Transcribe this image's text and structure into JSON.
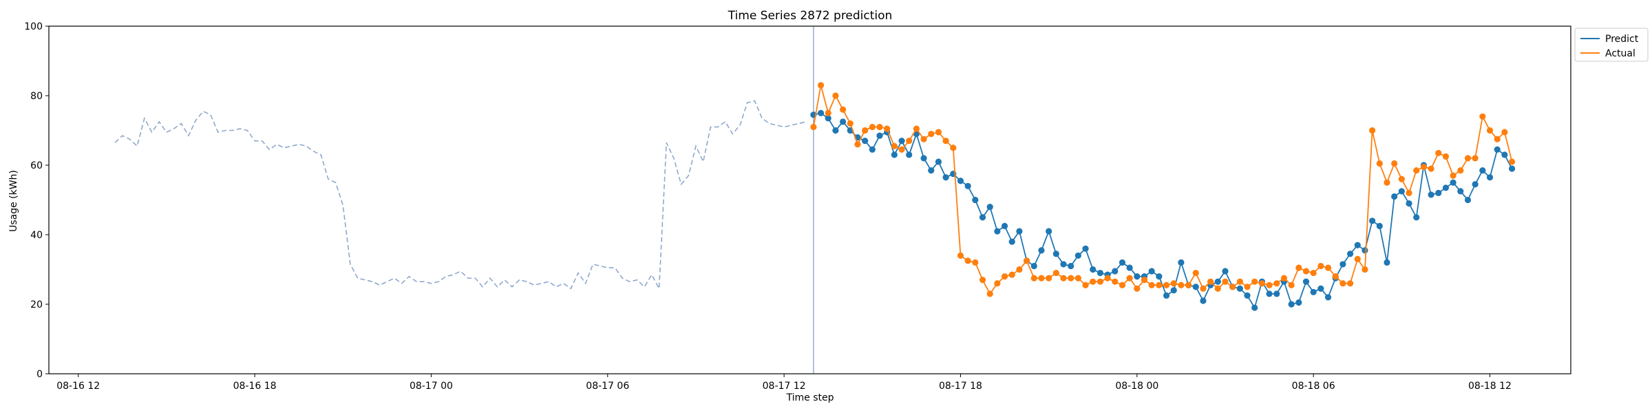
{
  "chart_data": {
    "type": "line",
    "title": "Time Series 2872 prediction",
    "xlabel": "Time step",
    "ylabel": "Usage (kWh)",
    "ylim": [
      0,
      100
    ],
    "yticks": [
      0,
      20,
      40,
      60,
      80,
      100
    ],
    "xlim": [
      "2023-08-16T11:00",
      "2023-08-18T14:45"
    ],
    "xticks": [
      {
        "t": "2023-08-16T12:00",
        "label": "08-16 12"
      },
      {
        "t": "2023-08-16T18:00",
        "label": "08-16 18"
      },
      {
        "t": "2023-08-17T00:00",
        "label": "08-17 00"
      },
      {
        "t": "2023-08-17T06:00",
        "label": "08-17 06"
      },
      {
        "t": "2023-08-17T12:00",
        "label": "08-17 12"
      },
      {
        "t": "2023-08-17T18:00",
        "label": "08-17 18"
      },
      {
        "t": "2023-08-18T00:00",
        "label": "08-18 00"
      },
      {
        "t": "2023-08-18T06:00",
        "label": "08-18 06"
      },
      {
        "t": "2023-08-18T12:00",
        "label": "08-18 12"
      }
    ],
    "forecast_start": "2023-08-17T13:00",
    "legend_position": "upper right outside",
    "grid": false,
    "history": {
      "start": "2023-08-16T13:15",
      "step_minutes": 15,
      "color": "#8fa8cc",
      "style": "dashed",
      "values": [
        66.5,
        68.5,
        67.5,
        65.5,
        73.5,
        69.5,
        72.5,
        69.5,
        70.5,
        72.0,
        68.5,
        73.0,
        75.5,
        74.5,
        69.5,
        70.0,
        70.0,
        70.5,
        70.0,
        67.0,
        67.0,
        64.5,
        66.0,
        65.0,
        65.5,
        66.0,
        65.5,
        64.0,
        63.0,
        56.0,
        55.0,
        48.5,
        31.5,
        27.5,
        27.0,
        26.5,
        25.5,
        26.5,
        27.5,
        26.0,
        28.0,
        26.5,
        26.5,
        26.0,
        26.5,
        28.0,
        28.5,
        29.5,
        27.5,
        27.5,
        25.0,
        27.5,
        25.0,
        27.0,
        25.0,
        27.0,
        26.5,
        25.5,
        26.0,
        26.5,
        25.0,
        26.0,
        24.5,
        29.0,
        26.0,
        31.5,
        31.0,
        30.5,
        30.5,
        27.5,
        26.5,
        27.0,
        25.0,
        28.5,
        24.5,
        66.5,
        62.0,
        54.5,
        57.0,
        65.5,
        61.0,
        71.0,
        71.0,
        72.5,
        69.0,
        71.5,
        78.0,
        78.5,
        73.5,
        72.0,
        71.5,
        71.0,
        71.5,
        72.0,
        72.5
      ]
    },
    "start": "2023-08-17T13:00",
    "step_minutes": 15,
    "series": [
      {
        "name": "Predict",
        "color": "#1f77b4",
        "values": [
          74.5,
          75.0,
          73.5,
          70.0,
          72.5,
          70.0,
          68.0,
          67.0,
          64.5,
          68.5,
          69.5,
          63.0,
          67.0,
          63.0,
          69.0,
          62.0,
          58.5,
          61.0,
          56.5,
          57.5,
          55.5,
          54.0,
          50.0,
          45.0,
          48.0,
          41.0,
          42.5,
          38.0,
          41.0,
          32.5,
          31.0,
          35.5,
          41.0,
          34.5,
          31.5,
          31.0,
          34.0,
          36.0,
          30.0,
          29.0,
          28.5,
          29.5,
          32.0,
          30.5,
          28.0,
          28.0,
          29.5,
          28.0,
          22.5,
          24.0,
          32.0,
          25.5,
          25.0,
          21.0,
          25.5,
          26.5,
          29.5,
          25.0,
          24.5,
          22.5,
          19.0,
          26.5,
          23.0,
          23.0,
          26.5,
          20.0,
          20.5,
          26.5,
          23.5,
          24.5,
          22.0,
          27.5,
          31.5,
          34.5,
          37.0,
          35.5,
          44.0,
          42.5,
          32.0,
          51.0,
          52.5,
          49.0,
          45.0,
          60.0,
          51.5,
          52.0,
          53.5,
          55.0,
          52.5,
          50.0,
          54.5,
          58.5,
          56.5,
          64.5,
          63.0,
          59.0
        ]
      },
      {
        "name": "Actual",
        "color": "#ff7f0e",
        "values": [
          71.0,
          83.0,
          75.0,
          80.0,
          76.0,
          72.0,
          66.0,
          70.0,
          71.0,
          71.0,
          70.5,
          65.5,
          64.5,
          67.0,
          70.5,
          67.5,
          69.0,
          69.5,
          67.0,
          65.0,
          34.0,
          32.5,
          32.0,
          27.0,
          23.0,
          26.0,
          28.0,
          28.5,
          30.0,
          32.5,
          27.5,
          27.5,
          27.5,
          29.0,
          27.5,
          27.5,
          27.5,
          25.5,
          26.5,
          26.5,
          27.5,
          26.5,
          25.5,
          27.5,
          24.5,
          27.0,
          25.5,
          25.5,
          25.5,
          26.0,
          25.5,
          25.5,
          29.0,
          24.5,
          26.5,
          24.5,
          26.5,
          25.0,
          26.5,
          25.0,
          26.5,
          26.0,
          25.5,
          26.0,
          27.5,
          25.5,
          30.5,
          29.5,
          29.0,
          31.0,
          30.5,
          28.0,
          26.0,
          26.0,
          33.0,
          30.0,
          70.0,
          60.5,
          55.0,
          60.5,
          56.0,
          52.0,
          58.5,
          59.5,
          59.0,
          63.5,
          62.5,
          57.0,
          58.5,
          62.0,
          62.0,
          74.0,
          70.0,
          67.5,
          69.5,
          61.0
        ]
      }
    ]
  }
}
